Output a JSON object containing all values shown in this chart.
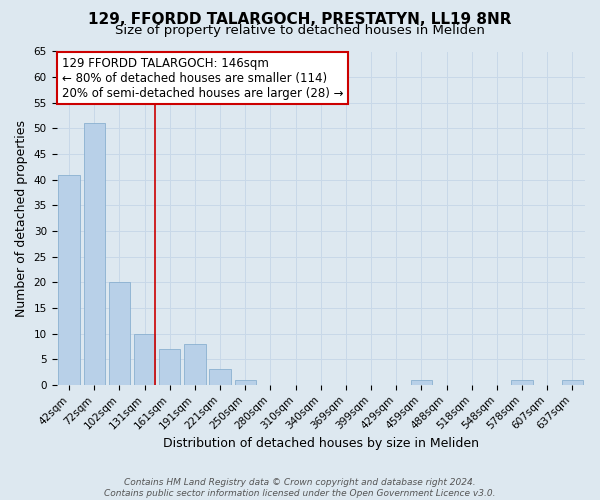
{
  "title": "129, FFORDD TALARGOCH, PRESTATYN, LL19 8NR",
  "subtitle": "Size of property relative to detached houses in Meliden",
  "xlabel": "Distribution of detached houses by size in Meliden",
  "ylabel": "Number of detached properties",
  "bar_labels": [
    "42sqm",
    "72sqm",
    "102sqm",
    "131sqm",
    "161sqm",
    "191sqm",
    "221sqm",
    "250sqm",
    "280sqm",
    "310sqm",
    "340sqm",
    "369sqm",
    "399sqm",
    "429sqm",
    "459sqm",
    "488sqm",
    "518sqm",
    "548sqm",
    "578sqm",
    "607sqm",
    "637sqm"
  ],
  "bar_heights": [
    41,
    51,
    20,
    10,
    7,
    8,
    3,
    1,
    0,
    0,
    0,
    0,
    0,
    0,
    1,
    0,
    0,
    0,
    1,
    0,
    1
  ],
  "bar_color": "#b8d0e8",
  "bar_edge_color": "#8ab0d0",
  "annotation_box_text": "129 FFORDD TALARGOCH: 146sqm\n← 80% of detached houses are smaller (114)\n20% of semi-detached houses are larger (28) →",
  "annotation_box_color": "#ffffff",
  "annotation_box_edge_color": "#cc0000",
  "vline_color": "#cc0000",
  "vline_x_index": 3,
  "ylim": [
    0,
    65
  ],
  "yticks": [
    0,
    5,
    10,
    15,
    20,
    25,
    30,
    35,
    40,
    45,
    50,
    55,
    60,
    65
  ],
  "grid_color": "#c8d8e8",
  "bg_color": "#dde8f0",
  "footnote": "Contains HM Land Registry data © Crown copyright and database right 2024.\nContains public sector information licensed under the Open Government Licence v3.0.",
  "title_fontsize": 11,
  "subtitle_fontsize": 9.5,
  "axis_label_fontsize": 9,
  "tick_fontsize": 7.5,
  "annot_fontsize": 8.5
}
